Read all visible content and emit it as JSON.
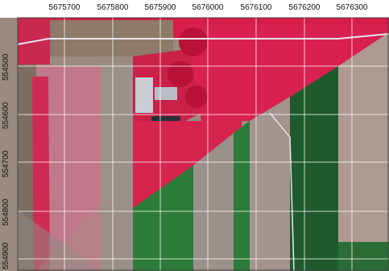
{
  "map": {
    "x_axis_labels": [
      "5675700",
      "5675800",
      "5675900",
      "5676000",
      "5676100",
      "5676200",
      "5676300"
    ],
    "y_axis_labels": [
      "554500",
      "554600",
      "554700",
      "554800",
      "554900"
    ],
    "colors": {
      "vegetation_red": "#d81845",
      "vegetation_dark_red": "#b0103a",
      "pink_field": "#c87a8e",
      "soil_brown": "#8a7468",
      "soil_gray": "#a69a92",
      "green_field": "#2f7a3a",
      "dark_green_field": "#1f5a2c",
      "road_white": "#e8e4ea",
      "building_gray": "#c9cdd4",
      "grid_line": "#ffffff"
    },
    "grid": true
  }
}
